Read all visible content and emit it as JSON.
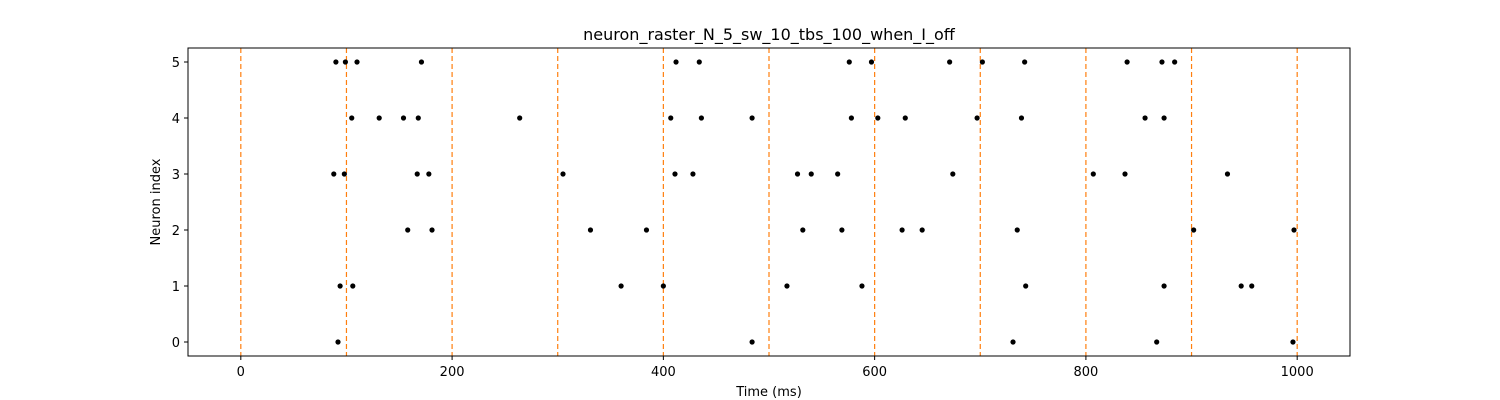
{
  "chart_data": {
    "type": "scatter",
    "title": "neuron_raster_N_5_sw_10_tbs_100_when_I_off",
    "xlabel": "Time (ms)",
    "ylabel": "Neuron index",
    "xlim": [
      -50,
      1050
    ],
    "ylim": [
      -0.25,
      5.25
    ],
    "xticks": [
      0,
      200,
      400,
      600,
      800,
      1000
    ],
    "yticks": [
      0,
      1,
      2,
      3,
      4,
      5
    ],
    "grid": false,
    "marker_color": "#000000",
    "vlines": {
      "color": "#ff7f0e",
      "style": "dashed",
      "x": [
        0,
        100,
        200,
        300,
        400,
        500,
        600,
        700,
        800,
        900,
        1000
      ]
    },
    "series": [
      {
        "neuron": 5,
        "x": [
          90,
          99,
          110,
          171,
          412,
          434,
          576,
          597,
          671,
          702,
          742,
          839,
          872,
          884
        ]
      },
      {
        "neuron": 4,
        "x": [
          105,
          131,
          154,
          168,
          264,
          407,
          436,
          484,
          578,
          603,
          629,
          697,
          739,
          856,
          874
        ]
      },
      {
        "neuron": 3,
        "x": [
          88,
          98,
          167,
          178,
          305,
          411,
          428,
          527,
          540,
          565,
          674,
          807,
          837,
          934
        ]
      },
      {
        "neuron": 2,
        "x": [
          158,
          181,
          331,
          384,
          532,
          569,
          626,
          645,
          735,
          902,
          997
        ]
      },
      {
        "neuron": 1,
        "x": [
          94,
          106,
          360,
          400,
          517,
          588,
          743,
          874,
          947,
          957
        ]
      },
      {
        "neuron": 0,
        "x": [
          92,
          484,
          731,
          867,
          996
        ]
      }
    ]
  }
}
